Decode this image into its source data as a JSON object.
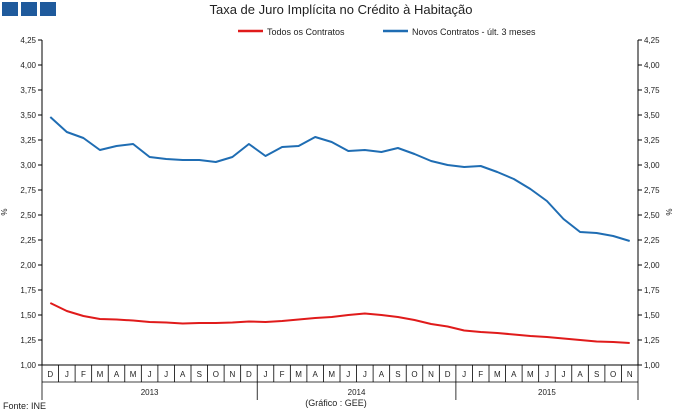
{
  "chart_data": {
    "type": "line",
    "title": "Taxa de Juro Implícita no Crédito à Habitação",
    "ylabel_left": "%",
    "ylabel_right": "%",
    "ylim": [
      1.0,
      4.25
    ],
    "yticks": [
      "1,00",
      "1,25",
      "1,50",
      "1,75",
      "2,00",
      "2,25",
      "2,50",
      "2,75",
      "3,00",
      "3,25",
      "3,50",
      "3,75",
      "4,00",
      "4,25"
    ],
    "months": [
      "D",
      "J",
      "F",
      "M",
      "A",
      "M",
      "J",
      "J",
      "A",
      "S",
      "O",
      "N",
      "D",
      "J",
      "F",
      "M",
      "A",
      "M",
      "J",
      "J",
      "A",
      "S",
      "O",
      "N",
      "D",
      "J",
      "F",
      "M",
      "A",
      "M",
      "J",
      "J",
      "A",
      "S",
      "O",
      "N"
    ],
    "years": [
      "2013",
      "2014",
      "2015"
    ],
    "legend": [
      "Todos os Contratos",
      "Novos Contratos - últ. 3 meses"
    ],
    "series": [
      {
        "name": "Todos os Contratos",
        "color": "#e01b1b",
        "values": [
          1.62,
          1.54,
          1.49,
          1.46,
          1.455,
          1.445,
          1.43,
          1.425,
          1.415,
          1.42,
          1.42,
          1.425,
          1.435,
          1.43,
          1.44,
          1.455,
          1.47,
          1.48,
          1.5,
          1.515,
          1.5,
          1.48,
          1.45,
          1.41,
          1.385,
          1.345,
          1.33,
          1.32,
          1.305,
          1.29,
          1.28,
          1.265,
          1.25,
          1.235,
          1.23,
          1.22
        ]
      },
      {
        "name": "Novos Contratos - últ. 3 meses",
        "color": "#1f6db3",
        "values": [
          3.48,
          3.33,
          3.27,
          3.15,
          3.19,
          3.21,
          3.08,
          3.06,
          3.05,
          3.05,
          3.03,
          3.08,
          3.21,
          3.09,
          3.18,
          3.19,
          3.28,
          3.23,
          3.14,
          3.15,
          3.13,
          3.17,
          3.11,
          3.04,
          3.0,
          2.98,
          2.99,
          2.93,
          2.86,
          2.76,
          2.64,
          2.46,
          2.33,
          2.32,
          2.29,
          2.24
        ]
      }
    ],
    "source": "Fonte: INE",
    "credit": "(Gráfico : GEE)"
  }
}
